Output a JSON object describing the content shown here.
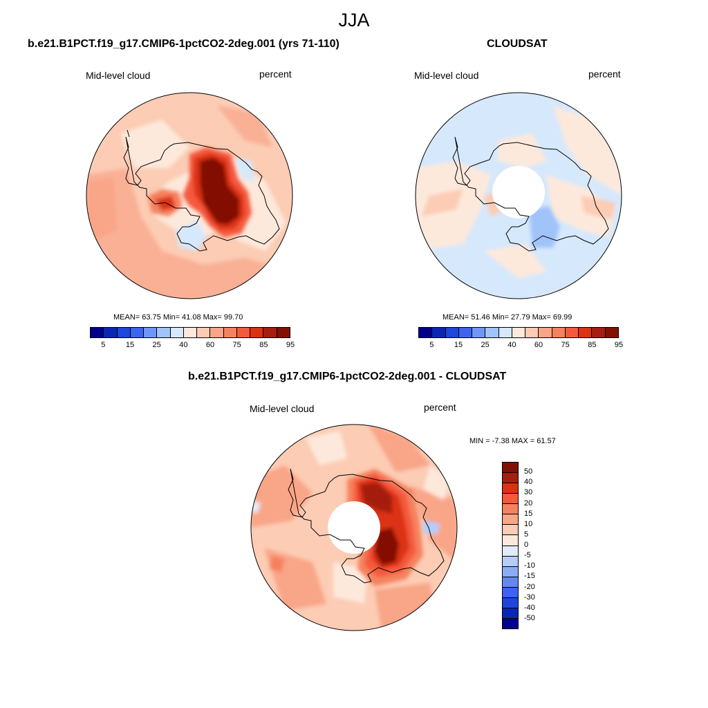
{
  "title": "JJA",
  "panels": {
    "model": {
      "title": "b.e21.B1PCT.f19_g17.CMIP6-1pctCO2-2deg.001 (yrs 71-110)",
      "variable": "Mid-level cloud",
      "units": "percent",
      "stats": "MEAN=  63.75  Min=  41.08  Max=  99.70"
    },
    "obs": {
      "title": "CLOUDSAT",
      "variable": "Mid-level cloud",
      "units": "percent",
      "stats": "MEAN=  51.46  Min=  27.79  Max=  69.99"
    },
    "diff": {
      "title": "b.e21.B1PCT.f19_g17.CMIP6-1pctCO2-2deg.001 - CLOUDSAT",
      "variable": "Mid-level cloud",
      "units": "percent",
      "stats": "MIN =  -7.38 MAX =  61.57"
    }
  },
  "colorbar_abs": {
    "colors": [
      "#00008b",
      "#0a26b4",
      "#1e46dc",
      "#3c64f0",
      "#6e96f5",
      "#a0c3fa",
      "#d6e8fc",
      "#fde9dc",
      "#fcccb4",
      "#f9a587",
      "#f5825f",
      "#f45a3c",
      "#dc3214",
      "#a51e0f",
      "#821003"
    ],
    "tick_labels": [
      "5",
      "15",
      "25",
      "40",
      "60",
      "75",
      "85",
      "95"
    ]
  },
  "colorbar_diff": {
    "colors": [
      "#821003",
      "#a51e0f",
      "#dc3214",
      "#f45a3c",
      "#f5825f",
      "#f9a587",
      "#fcccb4",
      "#fde9dc",
      "#e1ecfa",
      "#b4cdfa",
      "#8cacf5",
      "#6487f0",
      "#3c64f0",
      "#1e46dc",
      "#0a26b4",
      "#00008b"
    ],
    "tick_labels": [
      "50",
      "40",
      "30",
      "20",
      "15",
      "10",
      "5",
      "0",
      "-5",
      "-10",
      "-15",
      "-20",
      "-30",
      "-40",
      "-50"
    ]
  }
}
